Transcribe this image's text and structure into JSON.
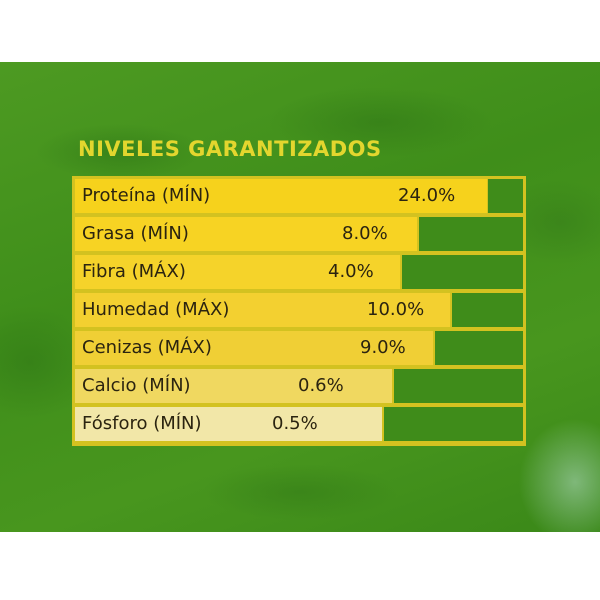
{
  "heading": "NIVELES GARANTIZADOS",
  "colors": {
    "background_green": "#3f8e1a",
    "heading_yellow": "#e3d62e",
    "table_border": "#d3c220",
    "bar_green": "#3f8c1a"
  },
  "rows": [
    {
      "label": "Proteína (MÍN)",
      "value": "24.0%",
      "fill": "#f6d21c"
    },
    {
      "label": "Grasa (MÍN)",
      "value": "8.0%",
      "fill": "#f7d323"
    },
    {
      "label": "Fibra (MÁX)",
      "value": "4.0%",
      "fill": "#f5d32a"
    },
    {
      "label": "Humedad (MÁX)",
      "value": "10.0%",
      "fill": "#f3d030"
    },
    {
      "label": "Cenizas (MÁX)",
      "value": "9.0%",
      "fill": "#f0cf35"
    },
    {
      "label": "Calcio (MÍN)",
      "value": "0.6%",
      "fill": "#f0d860"
    },
    {
      "label": "Fósforo (MÍN)",
      "value": "0.5%",
      "fill": "#f2e7a8"
    }
  ]
}
